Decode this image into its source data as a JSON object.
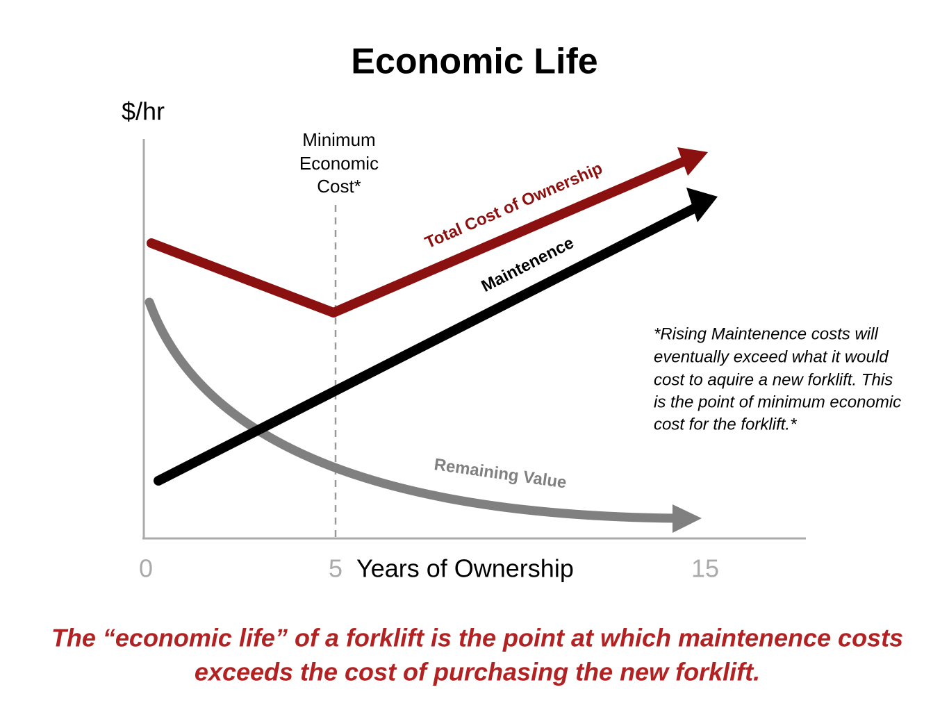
{
  "title": "Economic Life",
  "y_axis_label": "$/hr",
  "x_axis_label": "Years of Ownership",
  "x_tick_labels": [
    0,
    5,
    15
  ],
  "marker_label": [
    "Minimum",
    "Economic",
    "Cost*"
  ],
  "curves": {
    "total_cost": "Total Cost of Ownership",
    "maintenance": "Maintenence",
    "remaining_value": "Remaining Value"
  },
  "note": [
    "*Rising Maintenence costs will",
    "eventually exceed what it would",
    "cost to aquire a new forklift. This",
    "is the point of minimum economic",
    "cost for the forklift.*"
  ],
  "footer": [
    "The “economic life” of a forklift is the point at which maintenence costs",
    "exceeds the cost of purchasing the new forklift."
  ]
}
